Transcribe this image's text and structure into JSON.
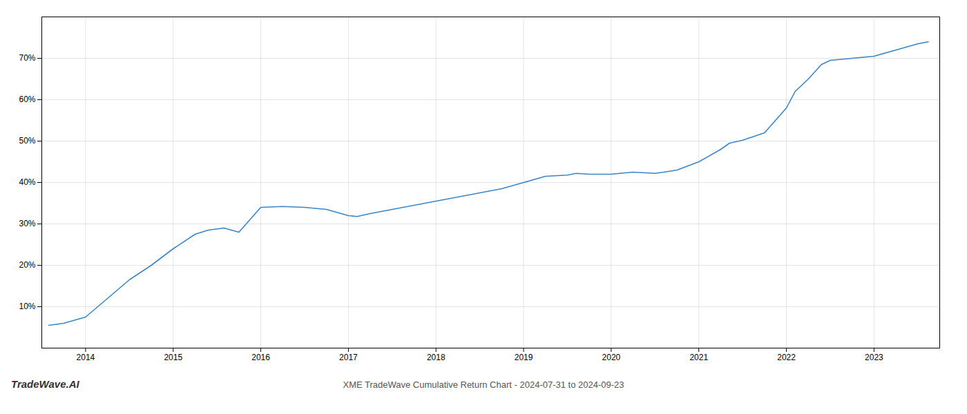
{
  "chart_data": {
    "type": "line",
    "title": "XME TradeWave Cumulative Return Chart - 2024-07-31 to 2024-09-23",
    "annotations": [
      "TradeWave.AI"
    ],
    "color": "#3a86c8",
    "x": [
      2013.58,
      2013.75,
      2014.0,
      2014.25,
      2014.5,
      2014.75,
      2015.0,
      2015.25,
      2015.4,
      2015.58,
      2015.75,
      2016.0,
      2016.25,
      2016.5,
      2016.75,
      2017.0,
      2017.1,
      2017.25,
      2017.5,
      2017.75,
      2018.0,
      2018.25,
      2018.5,
      2018.75,
      2019.0,
      2019.25,
      2019.5,
      2019.6,
      2019.75,
      2020.0,
      2020.1,
      2020.25,
      2020.5,
      2020.6,
      2020.75,
      2021.0,
      2021.25,
      2021.35,
      2021.5,
      2021.75,
      2022.0,
      2022.1,
      2022.25,
      2022.4,
      2022.5,
      2022.75,
      2023.0,
      2023.25,
      2023.5,
      2023.62
    ],
    "values": [
      5.5,
      6.0,
      7.5,
      12.0,
      16.5,
      20.0,
      24.0,
      27.5,
      28.5,
      29.0,
      28.0,
      34.0,
      34.2,
      34.0,
      33.5,
      32.0,
      31.8,
      32.5,
      33.5,
      34.5,
      35.5,
      36.5,
      37.5,
      38.5,
      40.0,
      41.5,
      41.8,
      42.2,
      42.0,
      42.0,
      42.2,
      42.5,
      42.2,
      42.5,
      43.0,
      45.0,
      48.0,
      49.5,
      50.2,
      52.0,
      58.0,
      62.0,
      65.0,
      68.5,
      69.5,
      70.0,
      70.5,
      72.0,
      73.5,
      74.0
    ],
    "xlim": [
      2013.5,
      2023.75
    ],
    "ylim": [
      0,
      80
    ],
    "xticks": [
      2014,
      2015,
      2016,
      2017,
      2018,
      2019,
      2020,
      2021,
      2022,
      2023
    ],
    "yticks": [
      {
        "value": 10,
        "label": "10%"
      },
      {
        "value": 20,
        "label": "20%"
      },
      {
        "value": 30,
        "label": "30%"
      },
      {
        "value": 40,
        "label": "40%"
      },
      {
        "value": 50,
        "label": "50%"
      },
      {
        "value": 60,
        "label": "60%"
      },
      {
        "value": 70,
        "label": "70%"
      }
    ],
    "grid": true
  }
}
